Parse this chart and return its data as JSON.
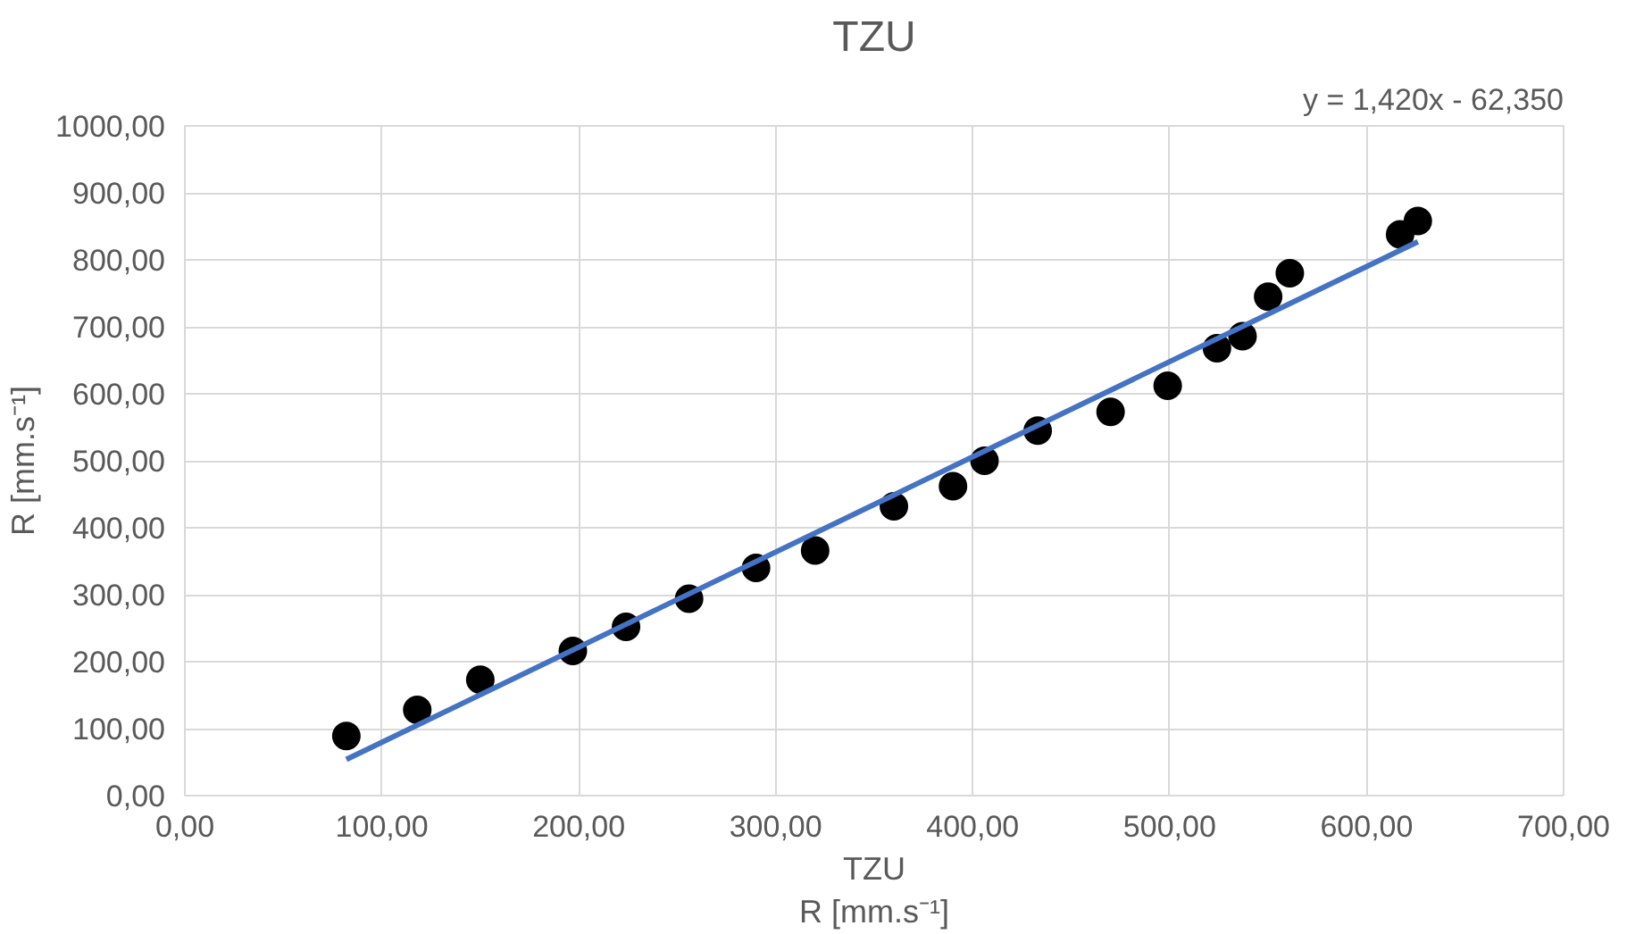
{
  "chart_data": {
    "type": "scatter",
    "title": "TZU",
    "xlabel": "TZU\nR [mm.s⁻¹]",
    "ylabel": "R [mm.s⁻¹]",
    "annotations": [
      "y = 1,420x - 62,350"
    ],
    "series": [
      {
        "color": "#000000",
        "marker": "circle",
        "x": [
          82,
          118,
          150,
          197,
          224,
          256,
          290,
          320,
          360,
          390,
          406,
          433,
          470,
          499,
          524,
          537,
          550,
          561,
          617,
          626
        ],
        "values": [
          89,
          128,
          173,
          216,
          252,
          294,
          340,
          366,
          432,
          462,
          500,
          545,
          573,
          612,
          668,
          686,
          745,
          780,
          838,
          858
        ]
      },
      {
        "type": "line",
        "color": "#4472c4",
        "x": [
          82,
          626
        ],
        "values": [
          54,
          827
        ]
      }
    ],
    "xlim": [
      0,
      700
    ],
    "ylim": [
      0,
      1000
    ],
    "xticks": [
      {
        "value": 0,
        "label": "0,00"
      },
      {
        "value": 100,
        "label": "100,00"
      },
      {
        "value": 200,
        "label": "200,00"
      },
      {
        "value": 300,
        "label": "300,00"
      },
      {
        "value": 400,
        "label": "400,00"
      },
      {
        "value": 500,
        "label": "500,00"
      },
      {
        "value": 600,
        "label": "600,00"
      },
      {
        "value": 700,
        "label": "700,00"
      }
    ],
    "yticks": [
      {
        "value": 0,
        "label": "0,00"
      },
      {
        "value": 100,
        "label": "100,00"
      },
      {
        "value": 200,
        "label": "200,00"
      },
      {
        "value": 300,
        "label": "300,00"
      },
      {
        "value": 400,
        "label": "400,00"
      },
      {
        "value": 500,
        "label": "500,00"
      },
      {
        "value": 600,
        "label": "600,00"
      },
      {
        "value": 700,
        "label": "700,00"
      },
      {
        "value": 800,
        "label": "800,00"
      },
      {
        "value": 900,
        "label": "900,00"
      },
      {
        "value": 1000,
        "label": "1000,00"
      }
    ],
    "grid": true
  }
}
